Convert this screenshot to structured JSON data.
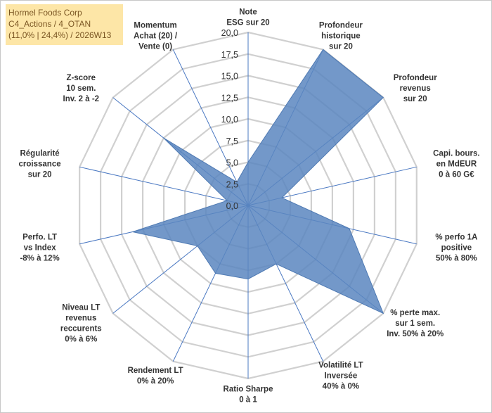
{
  "title": {
    "line1": "Hormel Foods Corp",
    "line2": "C4_Actions / 4_OTAN",
    "line3": "(11,0% | 24,4%) / 2026W13"
  },
  "chart_data": {
    "type": "radar",
    "r_min": 0,
    "r_max": 20,
    "r_ticks": [
      "0,0",
      "2,5",
      "5,0",
      "7,5",
      "10,0",
      "12,5",
      "15,0",
      "17,5",
      "20,0"
    ],
    "tick_values": [
      0,
      2.5,
      5,
      7.5,
      10,
      12.5,
      15,
      17.5,
      20
    ],
    "grid": true,
    "series_color": "#5b86bf",
    "axes": [
      {
        "label": [
          "Note",
          "ESG sur 20"
        ],
        "value": 5.0
      },
      {
        "label": [
          "Profondeur",
          "historique",
          "sur 20"
        ],
        "value": 20.0
      },
      {
        "label": [
          "Profondeur",
          "revenus",
          "sur 20"
        ],
        "value": 20.0
      },
      {
        "label": [
          "Capi. bours.",
          "en MdEUR",
          "0 à 60 G€"
        ],
        "value": 4.0
      },
      {
        "label": [
          "% perfo 1A",
          "positive",
          "50% à 80%"
        ],
        "value": 12.0
      },
      {
        "label": [
          "% perte max.",
          "sur 1 sem.",
          "Inv. 50% à 20%"
        ],
        "value": 20.0
      },
      {
        "label": [
          "Volatilité LT",
          "Inversée",
          "40% à 0%"
        ],
        "value": 7.5
      },
      {
        "label": [
          "Ratio Sharpe",
          "0 à 1"
        ],
        "value": 8.5
      },
      {
        "label": [
          "Rendement LT",
          "0% à 20%"
        ],
        "value": 8.7
      },
      {
        "label": [
          "Niveau LT",
          "revenus",
          "reccurents",
          "0% à 6%"
        ],
        "value": 7.5
      },
      {
        "label": [
          "Perfo. LT",
          "vs Index",
          "-8% à 12%"
        ],
        "value": 13.7
      },
      {
        "label": [
          "Régularité",
          "croissance",
          "sur 20"
        ],
        "value": 2.5
      },
      {
        "label": [
          "Z-score",
          "10 sem.",
          "Inv. 2 à -2"
        ],
        "value": 12.5
      },
      {
        "label": [
          "Momentum",
          "Achat (20) /",
          "Vente (0)"
        ],
        "value": 3.0
      }
    ]
  }
}
